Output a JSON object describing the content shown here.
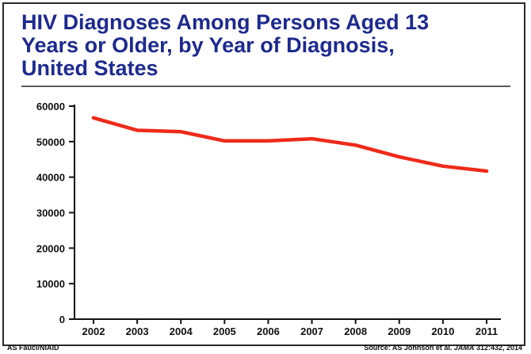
{
  "slide": {
    "title": "HIV Diagnoses Among Persons Aged 13\nYears or Older, by Year of Diagnosis,\nUnited States",
    "credit": "AS Fauci/NIAID",
    "source_prefix": "Source: AS Johnson et al.",
    "source_journal": "JAMA",
    "source_suffix": "312:432, 2014"
  },
  "colors": {
    "title": "#1d2a8f",
    "line": "#ef2a1a",
    "axis": "#111111"
  },
  "chart_data": {
    "type": "line",
    "title": "HIV Diagnoses Among Persons Aged 13 Years or Older, by Year of Diagnosis, United States",
    "xlabel": "",
    "ylabel": "",
    "x": [
      "2002",
      "2003",
      "2004",
      "2005",
      "2006",
      "2007",
      "2008",
      "2009",
      "2010",
      "2011"
    ],
    "series": [
      {
        "values": [
          56700,
          53200,
          52800,
          50200,
          50200,
          50800,
          49000,
          45700,
          43100,
          41700
        ]
      }
    ],
    "ylim": [
      0,
      60000
    ],
    "yticks": [
      0,
      10000,
      20000,
      30000,
      40000,
      50000,
      60000
    ],
    "ytick_labels": [
      "0",
      "10000",
      "20000",
      "30000",
      "40000",
      "50000",
      "60000"
    ],
    "grid": false,
    "legend": "none"
  }
}
